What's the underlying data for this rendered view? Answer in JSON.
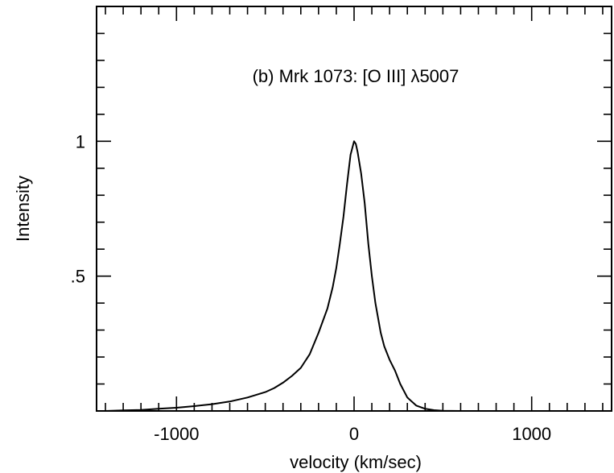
{
  "chart_data": {
    "type": "line",
    "title": "(b) Mrk 1073: [O III] λ5007",
    "xlabel": "velocity (km/sec)",
    "ylabel": "Intensity",
    "xlim": [
      -1450,
      1450
    ],
    "ylim": [
      0,
      1.5
    ],
    "x_ticks": [
      -1000,
      0,
      1000
    ],
    "x_tick_labels": [
      "-1000",
      "0",
      "1000"
    ],
    "y_ticks": [
      0.5,
      1
    ],
    "y_tick_labels": [
      ".5",
      "1"
    ],
    "grid": false,
    "series": [
      {
        "x": [
          -1400,
          -1300,
          -1200,
          -1100,
          -1000,
          -900,
          -800,
          -700,
          -600,
          -500,
          -450,
          -400,
          -350,
          -300,
          -250,
          -200,
          -150,
          -120,
          -100,
          -80,
          -60,
          -40,
          -20,
          0,
          10,
          20,
          40,
          60,
          80,
          100,
          120,
          150,
          170,
          200,
          230,
          260,
          300,
          350,
          400,
          450,
          500,
          600,
          700,
          800,
          900,
          1000,
          1100,
          1200,
          1300,
          1400
        ],
        "y": [
          0.0,
          0.002,
          0.004,
          0.008,
          0.012,
          0.018,
          0.025,
          0.035,
          0.05,
          0.07,
          0.085,
          0.105,
          0.13,
          0.16,
          0.21,
          0.29,
          0.38,
          0.46,
          0.53,
          0.62,
          0.72,
          0.84,
          0.95,
          1.0,
          0.99,
          0.96,
          0.88,
          0.77,
          0.62,
          0.5,
          0.4,
          0.29,
          0.24,
          0.19,
          0.15,
          0.1,
          0.05,
          0.02,
          0.008,
          0.003,
          0.001,
          0.0,
          0.0,
          0.0,
          0.0,
          0.0,
          0.0,
          0.0,
          0.0,
          0.0
        ]
      }
    ]
  }
}
